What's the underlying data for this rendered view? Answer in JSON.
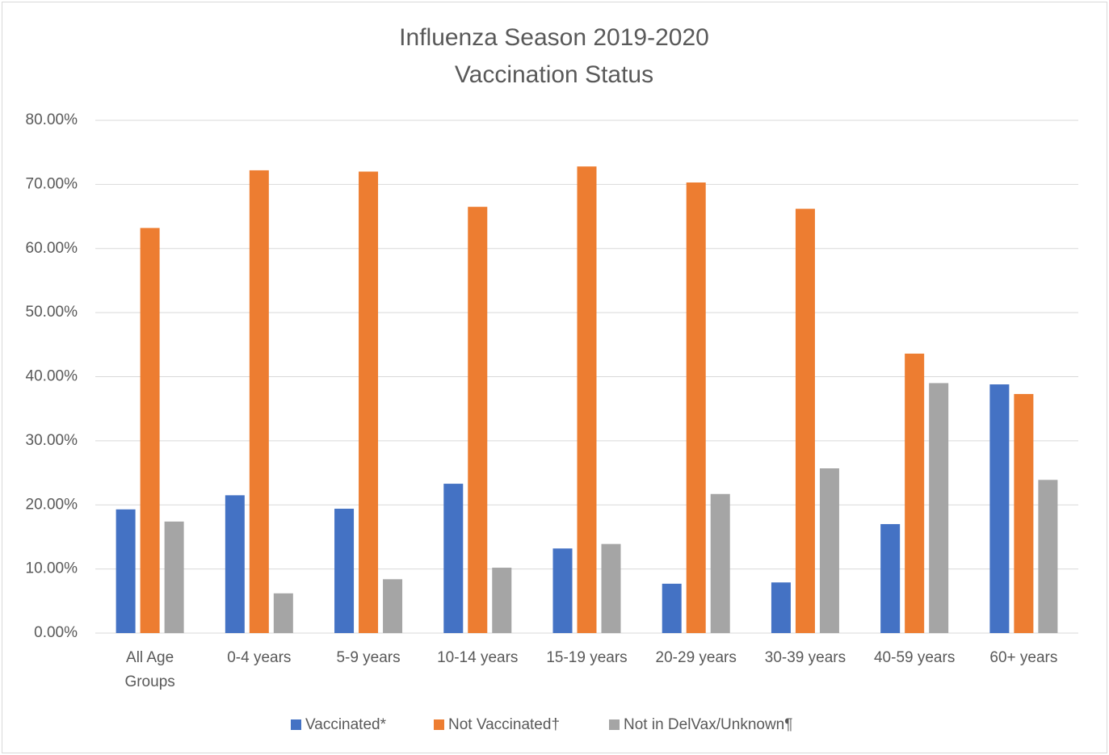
{
  "chart_data": {
    "type": "bar",
    "title": [
      "Influenza Season 2019-2020",
      "Vaccination Status"
    ],
    "categories": [
      "All Age Groups",
      "0-4 years",
      "5-9 years",
      "10-14 years",
      "15-19 years",
      "20-29 years",
      "30-39 years",
      "40-59 years",
      "60+ years"
    ],
    "series": [
      {
        "name": "Vaccinated*",
        "color": "#4472c4",
        "values": [
          19.3,
          21.5,
          19.4,
          23.3,
          13.2,
          7.7,
          7.9,
          17.0,
          38.8
        ]
      },
      {
        "name": "Not Vaccinated†",
        "color": "#ed7d31",
        "values": [
          63.2,
          72.2,
          72.0,
          66.5,
          72.8,
          70.3,
          66.2,
          43.6,
          37.3
        ]
      },
      {
        "name": "Not in DelVax/Unknown¶",
        "color": "#a5a5a5",
        "values": [
          17.4,
          6.2,
          8.4,
          10.2,
          13.9,
          21.7,
          25.7,
          39.0,
          23.9
        ]
      }
    ],
    "ylim": [
      0,
      80
    ],
    "yticks": [
      {
        "value": 0,
        "label": "0.00%"
      },
      {
        "value": 10,
        "label": "10.00%"
      },
      {
        "value": 20,
        "label": "20.00%"
      },
      {
        "value": 30,
        "label": "30.00%"
      },
      {
        "value": 40,
        "label": "40.00%"
      },
      {
        "value": 50,
        "label": "50.00%"
      },
      {
        "value": 60,
        "label": "60.00%"
      },
      {
        "value": 70,
        "label": "70.00%"
      },
      {
        "value": 80,
        "label": "80.00%"
      }
    ],
    "grid": true,
    "legend": "bottom"
  }
}
